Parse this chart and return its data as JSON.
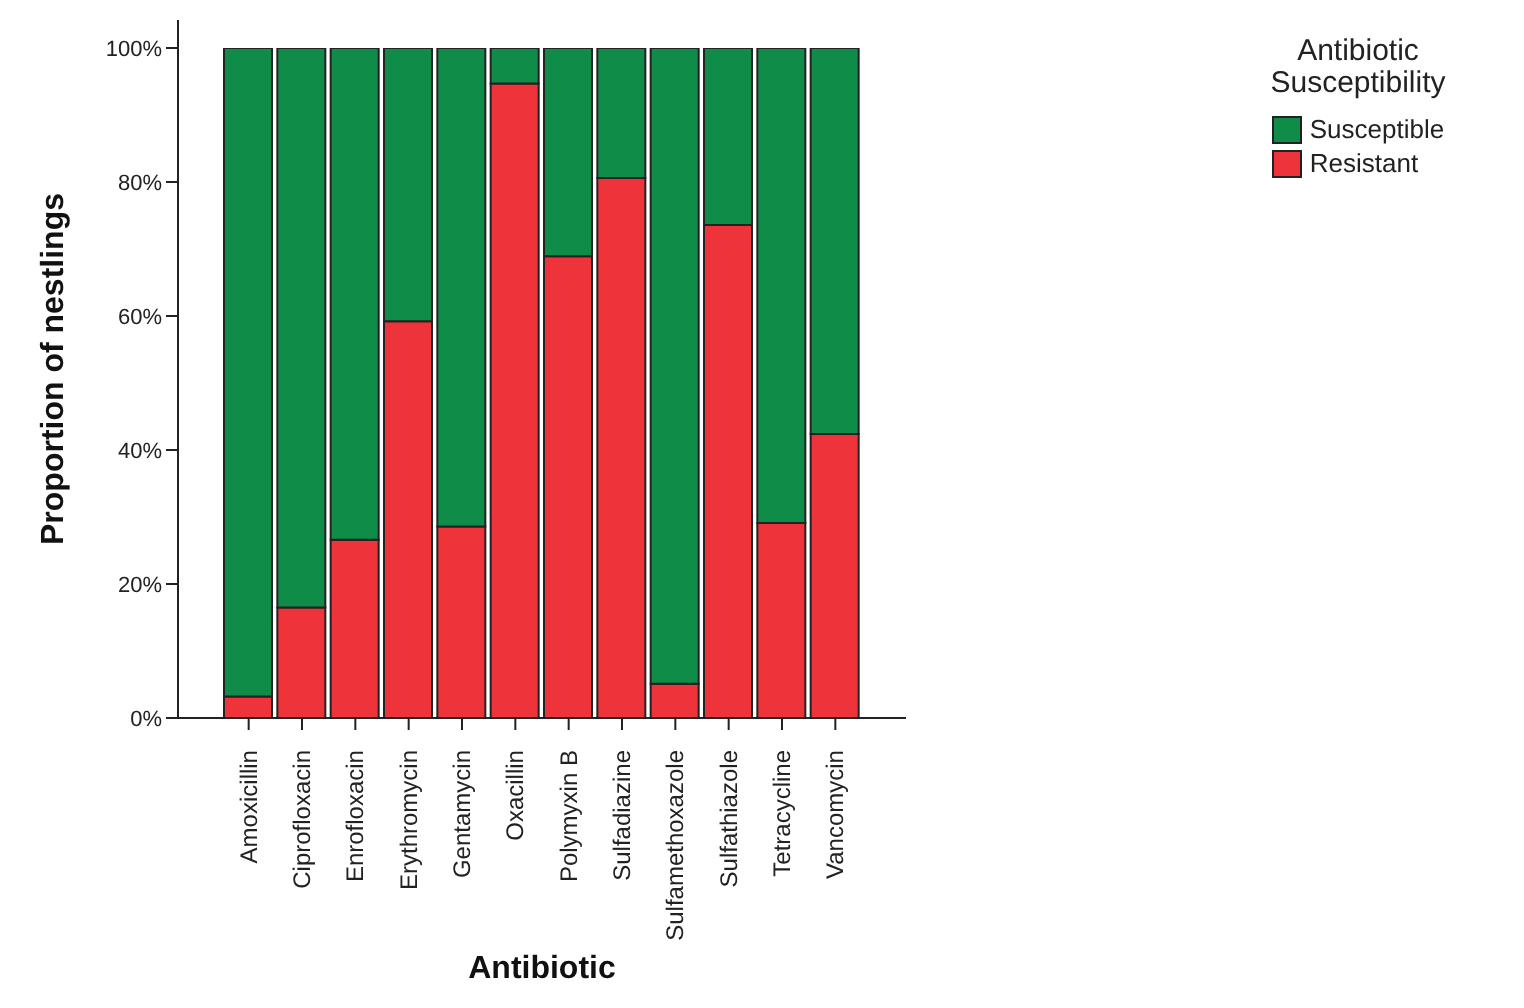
{
  "chart_data": {
    "type": "bar",
    "stacked": true,
    "xlabel": "Antibiotic",
    "ylabel": "Proportion of nestlings",
    "legend_title": "Antibiotic Susceptibility",
    "legend": "top right",
    "categories": [
      "Amoxicillin",
      "Ciprofloxacin",
      "Enrofloxacin",
      "Erythromycin",
      "Gentamycin",
      "Oxacillin",
      "Polymyxin B",
      "Sulfadiazine",
      "Sulfamethoxazole",
      "Sulfathiazole",
      "Tetracycline",
      "Vancomycin"
    ],
    "series": [
      {
        "name": "Resistant",
        "color": "#ef333b",
        "values": [
          3.2,
          16.5,
          26.6,
          59.2,
          28.6,
          94.7,
          68.9,
          80.6,
          5.1,
          73.6,
          29.1,
          42.4
        ]
      },
      {
        "name": "Susceptible",
        "color": "#0f8c47",
        "values": [
          96.8,
          83.5,
          73.4,
          40.8,
          71.4,
          5.3,
          31.1,
          19.4,
          94.9,
          26.4,
          70.9,
          57.6
        ]
      }
    ],
    "ylim": [
      0,
      100
    ],
    "yticks": [
      {
        "value": 0,
        "label": "0%"
      },
      {
        "value": 20,
        "label": "20%"
      },
      {
        "value": 40,
        "label": "40%"
      },
      {
        "value": 60,
        "label": "60%"
      },
      {
        "value": 80,
        "label": "80%"
      },
      {
        "value": 100,
        "label": "100%"
      }
    ]
  }
}
